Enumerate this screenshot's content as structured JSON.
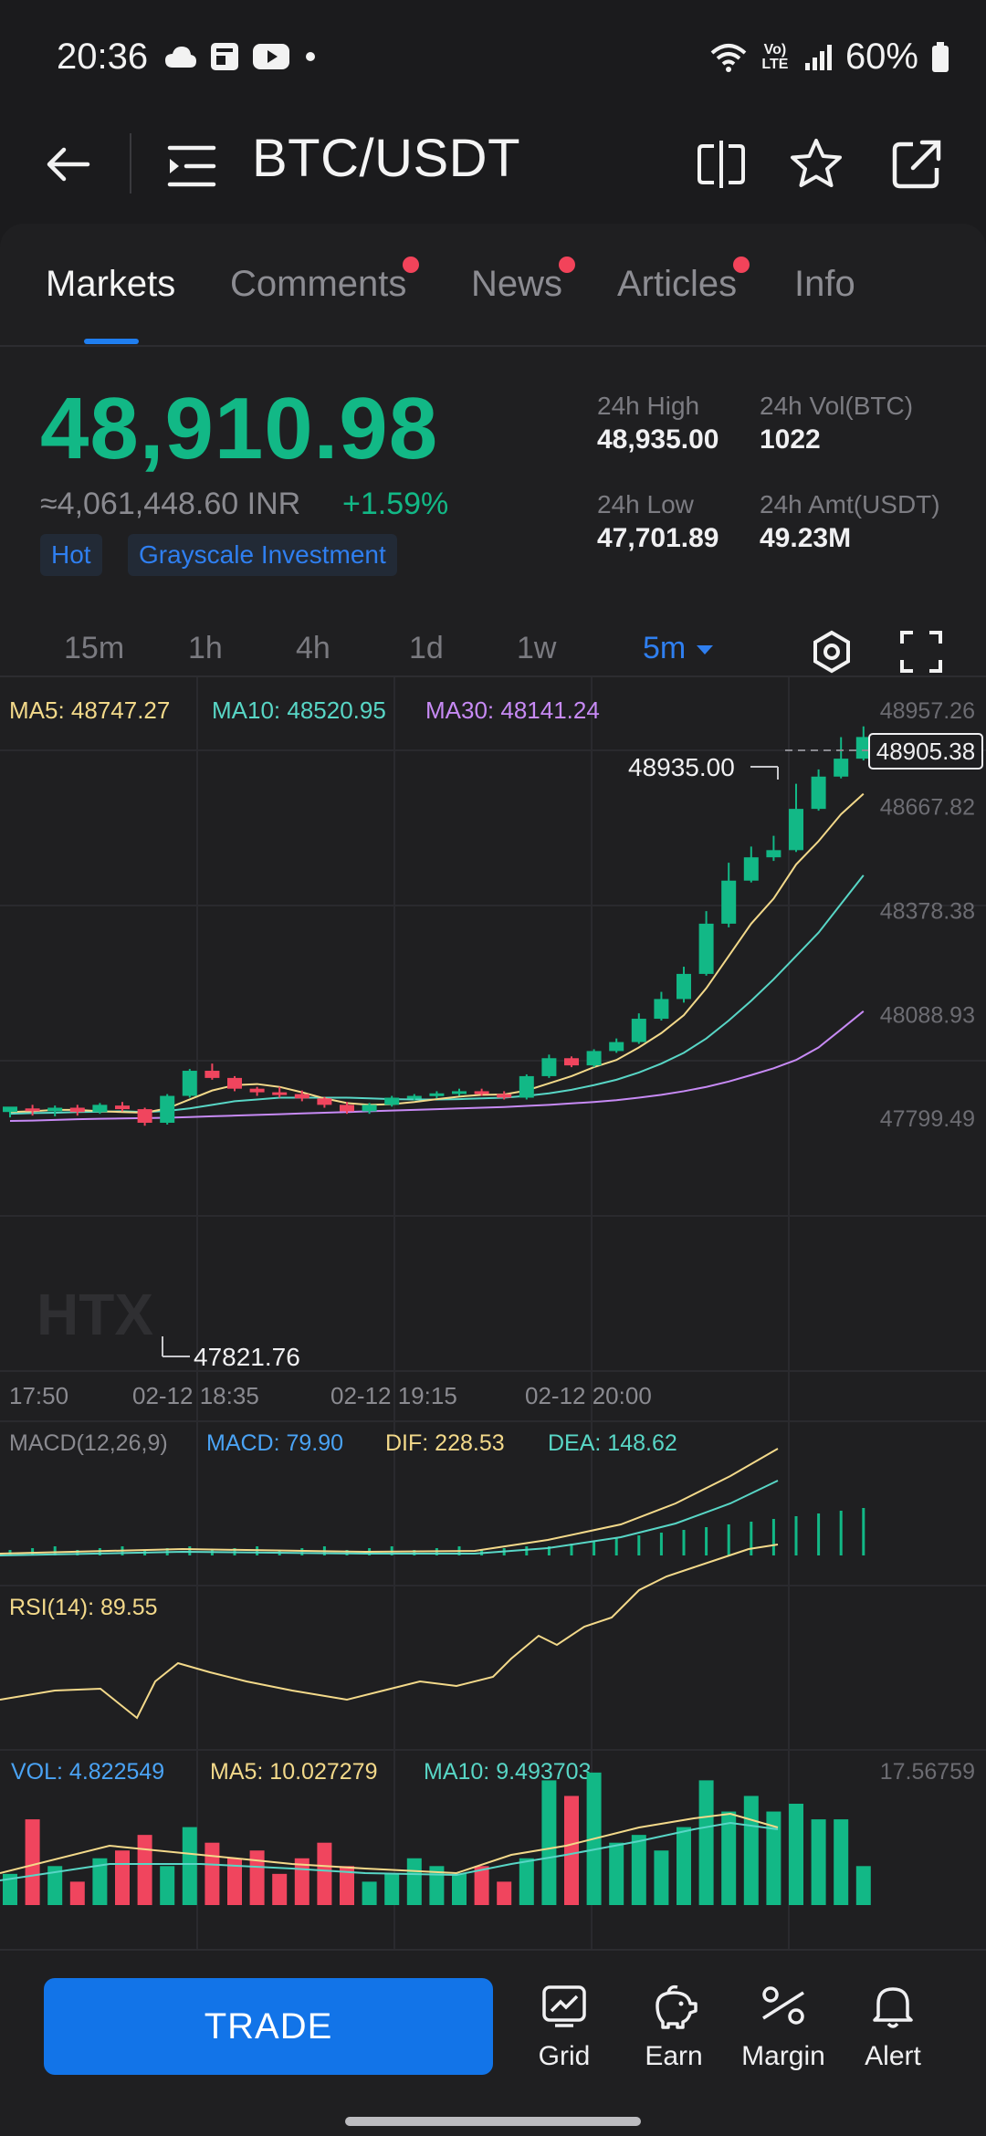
{
  "status_bar": {
    "time": "20:36",
    "battery": "60%",
    "network": "Vo) LTE"
  },
  "header": {
    "title": "BTC/USDT"
  },
  "tabs": [
    {
      "label": "Markets",
      "active": true,
      "dot": false
    },
    {
      "label": "Comments",
      "active": false,
      "dot": true
    },
    {
      "label": "News",
      "active": false,
      "dot": true
    },
    {
      "label": "Articles",
      "active": false,
      "dot": true
    },
    {
      "label": "Info",
      "active": false,
      "dot": false
    }
  ],
  "ticker": {
    "price": "48,910.98",
    "inr": "≈4,061,448.60 INR",
    "change": "+1.59%",
    "tags": [
      "Hot",
      "Grayscale Investment"
    ],
    "high_label": "24h High",
    "high": "48,935.00",
    "low_label": "24h Low",
    "low": "47,701.89",
    "vol_label": "24h Vol(BTC)",
    "vol": "1022",
    "amt_label": "24h Amt(USDT)",
    "amt": "49.23M"
  },
  "intervals": [
    "15m",
    "1h",
    "4h",
    "1d",
    "1w",
    "5m"
  ],
  "active_interval": "5m",
  "chart_data": {
    "type": "candlestick",
    "ma": {
      "ma5_label": "MA5: 48747.27",
      "ma10_label": "MA10: 48520.95",
      "ma30_label": "MA30: 48141.24"
    },
    "y_ticks": [
      "48957.26",
      "48667.82",
      "48378.38",
      "48088.93",
      "47799.49"
    ],
    "y_range": [
      47799.49,
      48957.26
    ],
    "x_ticks": [
      "17:50",
      "02-12 18:35",
      "02-12 19:15",
      "02-12 20:00"
    ],
    "high_mark": "48935.00",
    "low_mark": "47821.76",
    "last_price": "48905.38",
    "watermark": "HTX",
    "colors": {
      "up": "#12b886",
      "down": "#f0455e",
      "ma5": "#f3d98a",
      "ma10": "#58d6c6",
      "ma30": "#c78af5"
    },
    "candles": [
      [
        47860,
        47875,
        47845,
        47865
      ],
      [
        47870,
        47868,
        47850,
        47880
      ],
      [
        47862,
        47872,
        47848,
        47878
      ],
      [
        47872,
        47860,
        47850,
        47880
      ],
      [
        47860,
        47880,
        47855,
        47885
      ],
      [
        47878,
        47868,
        47862,
        47888
      ],
      [
        47868,
        47830,
        47821.76,
        47872
      ],
      [
        47830,
        47905,
        47825,
        47910
      ],
      [
        47905,
        47975,
        47900,
        47980
      ],
      [
        47975,
        47955,
        47950,
        47995
      ],
      [
        47955,
        47925,
        47918,
        47960
      ],
      [
        47925,
        47915,
        47905,
        47930
      ],
      [
        47915,
        47910,
        47900,
        47930
      ],
      [
        47910,
        47898,
        47890,
        47920
      ],
      [
        47898,
        47880,
        47872,
        47902
      ],
      [
        47880,
        47862,
        47855,
        47888
      ],
      [
        47862,
        47880,
        47855,
        47885
      ],
      [
        47880,
        47900,
        47875,
        47905
      ],
      [
        47900,
        47905,
        47892,
        47910
      ],
      [
        47905,
        47912,
        47898,
        47918
      ],
      [
        47912,
        47918,
        47905,
        47925
      ],
      [
        47918,
        47910,
        47905,
        47925
      ],
      [
        47910,
        47900,
        47895,
        47918
      ],
      [
        47900,
        47960,
        47895,
        47965
      ],
      [
        47960,
        48010,
        47955,
        48020
      ],
      [
        48010,
        47990,
        47985,
        48015
      ],
      [
        47990,
        48030,
        47985,
        48035
      ],
      [
        48030,
        48055,
        48025,
        48065
      ],
      [
        48055,
        48120,
        48050,
        48135
      ],
      [
        48120,
        48175,
        48115,
        48195
      ],
      [
        48175,
        48245,
        48165,
        48265
      ],
      [
        48245,
        48385,
        48240,
        48420
      ],
      [
        48385,
        48505,
        48375,
        48555
      ],
      [
        48505,
        48570,
        48500,
        48600
      ],
      [
        48570,
        48590,
        48560,
        48630
      ],
      [
        48590,
        48705,
        48585,
        48775
      ],
      [
        48705,
        48795,
        48700,
        48815
      ],
      [
        48795,
        48845,
        48790,
        48905
      ],
      [
        48845,
        48905.38,
        48840,
        48935
      ]
    ],
    "ma5": [
      47860,
      47862,
      47866,
      47866,
      47862,
      47860,
      47858,
      47870,
      47895,
      47920,
      47935,
      47938,
      47930,
      47915,
      47898,
      47885,
      47880,
      47882,
      47888,
      47896,
      47903,
      47908,
      47909,
      47920,
      47940,
      47960,
      47985,
      48005,
      48040,
      48080,
      48130,
      48205,
      48295,
      48385,
      48455,
      48550,
      48615,
      48690,
      48747
    ],
    "ma10": [
      47855,
      47857,
      47858,
      47860,
      47861,
      47862,
      47860,
      47863,
      47870,
      47880,
      47890,
      47895,
      47900,
      47900,
      47900,
      47900,
      47898,
      47896,
      47895,
      47895,
      47896,
      47898,
      47900,
      47905,
      47912,
      47922,
      47935,
      47950,
      47970,
      47995,
      48025,
      48065,
      48115,
      48170,
      48230,
      48295,
      48360,
      48440,
      48520
    ],
    "ma30": [
      47835,
      47836,
      47838,
      47840,
      47841,
      47842,
      47843,
      47844,
      47846,
      47848,
      47850,
      47852,
      47854,
      47856,
      47858,
      47860,
      47862,
      47864,
      47866,
      47868,
      47870,
      47872,
      47874,
      47877,
      47880,
      47884,
      47888,
      47893,
      47900,
      47908,
      47918,
      47930,
      47945,
      47963,
      47982,
      48005,
      48040,
      48090,
      48141
    ]
  },
  "macd": {
    "title": "MACD(12,26,9)",
    "macd": "MACD: 79.90",
    "dif": "DIF: 228.53",
    "dea": "DEA: 148.62"
  },
  "rsi": {
    "title": "RSI(14): 89.55"
  },
  "volume": {
    "vol": "VOL: 4.822549",
    "ma5": "MA5: 10.027279",
    "ma10": "MA10: 9.493703",
    "max": "17.56759"
  },
  "bottom": {
    "trade": "TRADE",
    "items": [
      "Grid",
      "Earn",
      "Margin",
      "Alert"
    ]
  }
}
